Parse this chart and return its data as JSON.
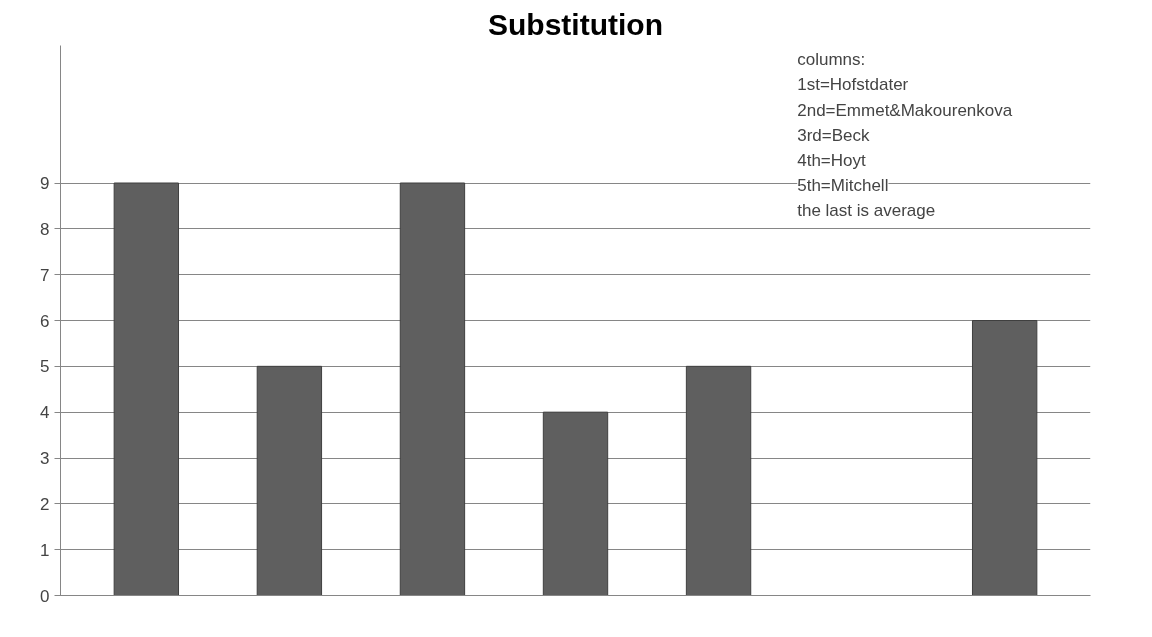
{
  "chart_data": {
    "type": "bar",
    "title": "Substitution",
    "categories": [
      null,
      null,
      null,
      null,
      null,
      null,
      null
    ],
    "values": [
      9,
      5,
      9,
      4,
      5,
      null,
      6
    ],
    "color": "#5f5f5f",
    "ylim": [
      0,
      12
    ],
    "yticks": [
      0,
      1,
      2,
      3,
      4,
      5,
      6,
      7,
      8,
      9
    ],
    "grid": "y",
    "tick_labels": "y",
    "annotations": [
      "columns:",
      "1st=Hofstdater",
      "2nd=Emmet&Makourenkova",
      "3rd=Beck",
      "4th=Hoyt",
      "5th=Mitchell",
      "the last is average"
    ]
  }
}
